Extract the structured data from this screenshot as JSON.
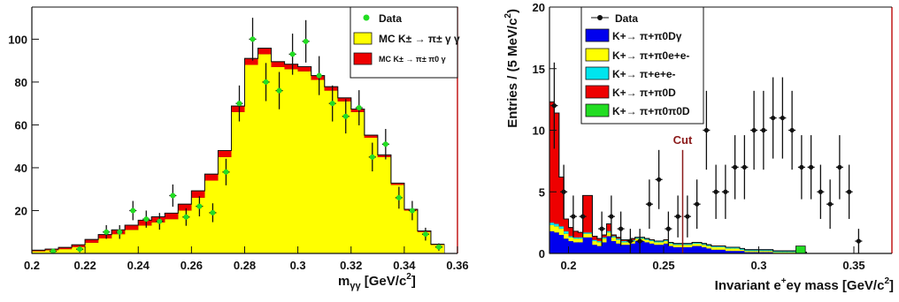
{
  "chart_data": [
    {
      "type": "histogram",
      "xlabel": "m",
      "xlabel_sub": "γγ",
      "xlabel_unit": " [GeV/c",
      "xlabel_sup": "2",
      "xlabel_end": "]",
      "ylabel": "",
      "xlim": [
        0.2,
        0.36
      ],
      "ylim": [
        0,
        115
      ],
      "x_ticks": [
        0.2,
        0.22,
        0.24,
        0.26,
        0.28,
        0.3,
        0.32,
        0.34,
        0.36
      ],
      "x_tick_labels": [
        "0.2",
        "0.22",
        "0.24",
        "0.26",
        "0.28",
        "0.3",
        "0.32",
        "0.34",
        "0.36"
      ],
      "y_ticks": [
        20,
        40,
        60,
        80,
        100
      ],
      "y_tick_labels": [
        "20",
        "40",
        "60",
        "80",
        "100"
      ],
      "legend": {
        "placement": "top-right",
        "entries": [
          {
            "label": "Data",
            "kind": "marker",
            "color": "#22dd22",
            "size": "large"
          },
          {
            "label": "MC K± → π± γ γ",
            "kind": "box",
            "color": "#ffff00",
            "size": "large"
          },
          {
            "label": "MC K± → π± π0 γ",
            "kind": "box",
            "color": "#ee0000",
            "size": "small"
          }
        ]
      },
      "bin_edges": [
        0.2,
        0.205,
        0.21,
        0.215,
        0.22,
        0.225,
        0.23,
        0.235,
        0.24,
        0.245,
        0.25,
        0.255,
        0.26,
        0.265,
        0.27,
        0.275,
        0.28,
        0.285,
        0.29,
        0.295,
        0.3,
        0.305,
        0.31,
        0.315,
        0.32,
        0.325,
        0.33,
        0.335,
        0.34,
        0.345,
        0.35,
        0.355
      ],
      "series": [
        {
          "name": "MC K± → π± γ γ",
          "kind": "stacked-fill",
          "color": "#ffff00",
          "values": [
            1,
            1.5,
            2,
            3,
            5,
            7,
            9,
            11,
            13,
            14.5,
            16,
            20,
            26,
            34,
            45,
            66,
            88,
            93,
            87,
            86,
            85,
            81,
            76,
            71,
            66,
            54,
            45,
            32,
            20,
            10,
            4
          ]
        },
        {
          "name": "MC K± → π± π0 γ",
          "kind": "stacked-fill",
          "color": "#ee0000",
          "values": [
            0.5,
            0.5,
            0.8,
            1,
            1.5,
            1.8,
            2,
            2.2,
            2.5,
            2.6,
            2.8,
            3,
            3.2,
            3,
            3,
            2.8,
            3,
            2.8,
            2.5,
            2.3,
            2.2,
            2,
            1.8,
            1.6,
            1.4,
            1.2,
            1,
            0.8,
            0.6,
            0.5,
            0.3
          ]
        },
        {
          "name": "Data",
          "kind": "points",
          "color": "#22dd22",
          "points": [
            {
              "x": 0.208,
              "y": 1,
              "err": 1
            },
            {
              "x": 0.218,
              "y": 2,
              "err": 1.5
            },
            {
              "x": 0.228,
              "y": 10,
              "err": 3.2
            },
            {
              "x": 0.233,
              "y": 10,
              "err": 3.2
            },
            {
              "x": 0.238,
              "y": 20,
              "err": 4.5
            },
            {
              "x": 0.243,
              "y": 16,
              "err": 4
            },
            {
              "x": 0.248,
              "y": 15,
              "err": 3.9
            },
            {
              "x": 0.253,
              "y": 27,
              "err": 5.2
            },
            {
              "x": 0.258,
              "y": 17,
              "err": 4.1
            },
            {
              "x": 0.263,
              "y": 22,
              "err": 4.7
            },
            {
              "x": 0.268,
              "y": 19,
              "err": 4.4
            },
            {
              "x": 0.273,
              "y": 38,
              "err": 6.2
            },
            {
              "x": 0.278,
              "y": 70,
              "err": 8.4
            },
            {
              "x": 0.283,
              "y": 100,
              "err": 10
            },
            {
              "x": 0.288,
              "y": 80,
              "err": 8.9
            },
            {
              "x": 0.293,
              "y": 76,
              "err": 8.7
            },
            {
              "x": 0.298,
              "y": 93,
              "err": 9.6
            },
            {
              "x": 0.303,
              "y": 99,
              "err": 9.9
            },
            {
              "x": 0.308,
              "y": 83,
              "err": 9.1
            },
            {
              "x": 0.313,
              "y": 70,
              "err": 8.4
            },
            {
              "x": 0.318,
              "y": 64,
              "err": 8
            },
            {
              "x": 0.323,
              "y": 68,
              "err": 8.2
            },
            {
              "x": 0.328,
              "y": 45,
              "err": 6.7
            },
            {
              "x": 0.333,
              "y": 51,
              "err": 7.1
            },
            {
              "x": 0.338,
              "y": 26,
              "err": 5.1
            },
            {
              "x": 0.343,
              "y": 20,
              "err": 4.5
            },
            {
              "x": 0.348,
              "y": 9,
              "err": 3
            },
            {
              "x": 0.353,
              "y": 3,
              "err": 1.7
            }
          ]
        }
      ]
    },
    {
      "type": "histogram",
      "xlabel": "Invariant e",
      "xlabel_sup1": "+",
      "xlabel_mid": "e",
      "xlabel_rest": "γ mass [GeV/c",
      "xlabel_sup2": "2",
      "xlabel_end": "]",
      "ylabel": "Entries / (5 MeV/c",
      "ylabel_sup": "2",
      "ylabel_end": ")",
      "xlim": [
        0.19,
        0.37
      ],
      "ylim": [
        0,
        20
      ],
      "x_ticks": [
        0.2,
        0.25,
        0.3,
        0.35
      ],
      "x_tick_labels": [
        "0.2",
        "0.25",
        "0.3",
        "0.35"
      ],
      "y_ticks": [
        0,
        5,
        10,
        15,
        20
      ],
      "y_tick_labels": [
        "0",
        "5",
        "10",
        "15",
        "20"
      ],
      "cut": {
        "x": 0.26,
        "label": "Cut",
        "color": "#8b1a1a"
      },
      "legend": {
        "placement": "top-left",
        "entries": [
          {
            "label": "Data",
            "kind": "marker",
            "color": "#111111"
          },
          {
            "label": "K+→ π+π0Dγ",
            "kind": "box",
            "color": "#0000ee"
          },
          {
            "label": "K+→ π+π0e+e-",
            "kind": "box",
            "color": "#ffff00"
          },
          {
            "label": "K+→ π+e+e-",
            "kind": "box",
            "color": "#00e5ee"
          },
          {
            "label": "K+→ π+π0D",
            "kind": "box",
            "color": "#ee0000"
          },
          {
            "label": "K+→ π+π0π0D",
            "kind": "box",
            "color": "#22dd22"
          }
        ]
      },
      "bin_edges": [
        0.19,
        0.1925,
        0.195,
        0.1975,
        0.2,
        0.2025,
        0.205,
        0.2075,
        0.21,
        0.2125,
        0.215,
        0.2175,
        0.22,
        0.2225,
        0.225,
        0.2275,
        0.23,
        0.2325,
        0.235,
        0.2375,
        0.24,
        0.2425,
        0.245,
        0.2475,
        0.25,
        0.2525,
        0.255,
        0.2575,
        0.26,
        0.2625,
        0.265,
        0.2675,
        0.27,
        0.2725,
        0.275,
        0.2775,
        0.28,
        0.2825,
        0.285,
        0.2875,
        0.29,
        0.2925,
        0.295,
        0.2975,
        0.3,
        0.3025,
        0.305,
        0.3075,
        0.31,
        0.3125,
        0.315,
        0.3175,
        0.32,
        0.3225,
        0.325,
        0.3275,
        0.33
      ],
      "series": [
        {
          "name": "K+→ π+π0Dγ",
          "kind": "stacked-fill",
          "color": "#0000ee",
          "values": [
            1.8,
            1.7,
            1.5,
            1.2,
            1.0,
            0.9,
            0.9,
            1.3,
            1.3,
            0.7,
            0.6,
            0.9,
            1.4,
            1.0,
            0.8,
            0.7,
            0.7,
            0.8,
            1.0,
            1.0,
            0.9,
            0.8,
            0.7,
            0.7,
            0.8,
            0.6,
            0.5,
            0.5,
            0.5,
            0.5,
            0.6,
            0.6,
            0.5,
            0.4,
            0.3,
            0.3,
            0.3,
            0.2,
            0.2,
            0.2,
            0.2,
            0.1,
            0.1,
            0.1,
            0.1,
            0.1,
            0.1,
            0,
            0,
            0,
            0,
            0,
            0,
            0,
            0,
            0
          ]
        },
        {
          "name": "K+→ π+π0e+e-",
          "kind": "stacked-fill",
          "color": "#ffff00",
          "values": [
            0.5,
            0.5,
            0.5,
            0.4,
            0.3,
            0.3,
            0.3,
            0.3,
            0.3,
            0.3,
            0.3,
            0.3,
            0.3,
            0.3,
            0.3,
            0.2,
            0.2,
            0.2,
            0.2,
            0.2,
            0.2,
            0.2,
            0.2,
            0.2,
            0.2,
            0.2,
            0.2,
            0.2,
            0.2,
            0.2,
            0.2,
            0.2,
            0.2,
            0.2,
            0.2,
            0.2,
            0.2,
            0.2,
            0.2,
            0.2,
            0.1,
            0.1,
            0.1,
            0.1,
            0.1,
            0.1,
            0.1,
            0.1,
            0.1,
            0.1,
            0.1,
            0.1,
            0.1,
            0,
            0,
            0
          ]
        },
        {
          "name": "K+→ π+e+e-",
          "kind": "stacked-fill",
          "color": "#00e5ee",
          "values": [
            0.2,
            0.2,
            0.2,
            0.2,
            0.1,
            0.1,
            0.1,
            0.1,
            0.1,
            0.1,
            0.1,
            0.1,
            0.1,
            0.1,
            0.1,
            0.1,
            0.1,
            0.1,
            0.1,
            0.1,
            0.1,
            0.1,
            0.1,
            0.1,
            0.1,
            0.1,
            0.1,
            0.1,
            0.1,
            0.1,
            0.1,
            0.1,
            0.1,
            0.1,
            0.1,
            0.1,
            0.1,
            0.1,
            0.1,
            0.1,
            0.1,
            0.1,
            0.1,
            0.1,
            0.1,
            0.1,
            0.1,
            0.1,
            0.1,
            0.1,
            0.1,
            0.1,
            0.1,
            0.1,
            0,
            0
          ]
        },
        {
          "name": "K+→ π+π0D",
          "kind": "stacked-fill",
          "color": "#ee0000",
          "values": [
            9.8,
            9.0,
            4.0,
            1.0,
            0.7,
            0.5,
            0.4,
            3.0,
            3.0,
            0.3,
            0.2,
            0.2,
            0.6,
            0.1,
            0.1,
            0.1,
            0.1,
            0.1,
            0,
            0,
            0,
            0,
            0,
            0,
            0,
            0,
            0,
            0,
            0,
            0,
            0,
            0,
            0,
            0,
            0,
            0,
            0,
            0,
            0,
            0,
            0,
            0,
            0,
            0,
            0,
            0,
            0,
            0,
            0,
            0,
            0,
            0,
            0,
            0,
            0,
            0
          ]
        },
        {
          "name": "K+→ π+π0π0D",
          "kind": "stacked-fill",
          "color": "#22dd22",
          "values": [
            0,
            0,
            0,
            0,
            0,
            0,
            0,
            0,
            0,
            0,
            0,
            0,
            0,
            0,
            0,
            0,
            0,
            0,
            0,
            0,
            0,
            0,
            0,
            0,
            0,
            0,
            0,
            0,
            0,
            0,
            0,
            0,
            0,
            0,
            0,
            0,
            0,
            0,
            0,
            0,
            0,
            0,
            0,
            0,
            0,
            0,
            0,
            0,
            0,
            0,
            0,
            0,
            0,
            0,
            0,
            0
          ]
        },
        {
          "name": "K+→ π+π0π0D",
          "kind": "single-bin",
          "color": "#22dd22",
          "bins": [
            {
              "x0": 0.3195,
              "x1": 0.3245,
              "y": 0.6
            }
          ]
        },
        {
          "name": "Data",
          "kind": "points",
          "color": "#111111",
          "points": [
            {
              "x": 0.1925,
              "y": 12,
              "err": 3.5
            },
            {
              "x": 0.1975,
              "y": 5,
              "err": 2.2
            },
            {
              "x": 0.2025,
              "y": 3,
              "err": 1.7
            },
            {
              "x": 0.2075,
              "y": 3,
              "err": 1.7
            },
            {
              "x": 0.2175,
              "y": 2,
              "err": 1.4
            },
            {
              "x": 0.2225,
              "y": 3,
              "err": 1.7
            },
            {
              "x": 0.2275,
              "y": 2,
              "err": 1.4
            },
            {
              "x": 0.2325,
              "y": 1,
              "err": 1
            },
            {
              "x": 0.2375,
              "y": 1,
              "err": 1
            },
            {
              "x": 0.2425,
              "y": 4,
              "err": 2
            },
            {
              "x": 0.2475,
              "y": 6,
              "err": 2.4
            },
            {
              "x": 0.2525,
              "y": 2,
              "err": 1.4
            },
            {
              "x": 0.2575,
              "y": 3,
              "err": 1.7
            },
            {
              "x": 0.2625,
              "y": 3,
              "err": 1.7
            },
            {
              "x": 0.2675,
              "y": 4,
              "err": 2
            },
            {
              "x": 0.2725,
              "y": 10,
              "err": 3.2
            },
            {
              "x": 0.2775,
              "y": 5,
              "err": 2.2
            },
            {
              "x": 0.2825,
              "y": 5,
              "err": 2.2
            },
            {
              "x": 0.2875,
              "y": 7,
              "err": 2.6
            },
            {
              "x": 0.2925,
              "y": 7,
              "err": 2.6
            },
            {
              "x": 0.2975,
              "y": 10,
              "err": 3.2
            },
            {
              "x": 0.3025,
              "y": 10,
              "err": 3.2
            },
            {
              "x": 0.3075,
              "y": 11,
              "err": 3.3
            },
            {
              "x": 0.3125,
              "y": 11,
              "err": 3.3
            },
            {
              "x": 0.3175,
              "y": 10,
              "err": 3.2
            },
            {
              "x": 0.3225,
              "y": 7,
              "err": 2.6
            },
            {
              "x": 0.3275,
              "y": 7,
              "err": 2.6
            },
            {
              "x": 0.3325,
              "y": 5,
              "err": 2.2
            },
            {
              "x": 0.3375,
              "y": 4,
              "err": 2
            },
            {
              "x": 0.3425,
              "y": 7,
              "err": 2.6
            },
            {
              "x": 0.3475,
              "y": 5,
              "err": 2.2
            },
            {
              "x": 0.3525,
              "y": 1,
              "err": 1
            }
          ]
        }
      ]
    }
  ]
}
